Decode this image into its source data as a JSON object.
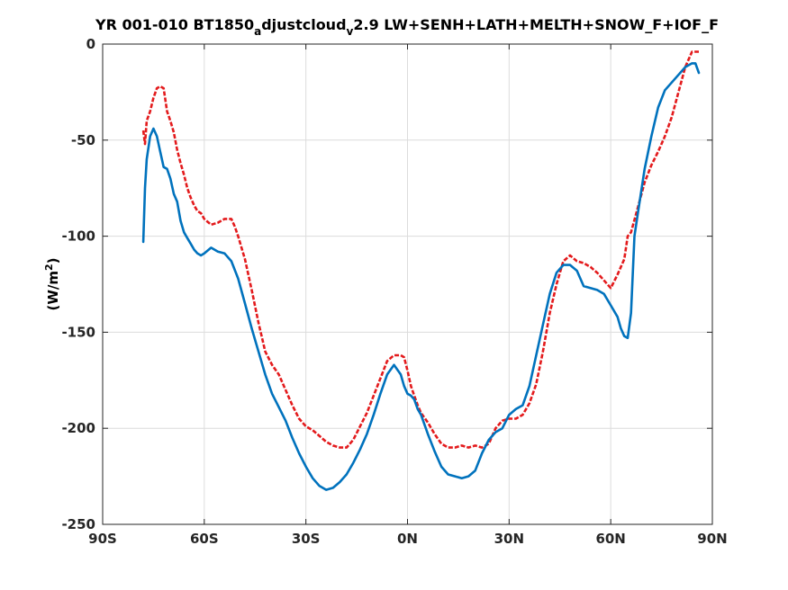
{
  "chart_data": {
    "type": "line",
    "title_parts": {
      "a": "YR 001-010 BT1850",
      "sub_a": "a",
      "b": "djustcloud",
      "sub_v": "v",
      "c": "2.9 LW+SENH+LATH+MELTH+SNOW_F+IOF_F"
    },
    "ylabel_parts": {
      "a": "(W/m",
      "sup": "2",
      "b": ")"
    },
    "xlim": [
      -90,
      90
    ],
    "ylim": [
      -250,
      0
    ],
    "grid": true,
    "x_ticks": [
      {
        "value": -90,
        "label": "90S"
      },
      {
        "value": -60,
        "label": "60S"
      },
      {
        "value": -30,
        "label": "30S"
      },
      {
        "value": 0,
        "label": "0N"
      },
      {
        "value": 30,
        "label": "30N"
      },
      {
        "value": 60,
        "label": "60N"
      },
      {
        "value": 90,
        "label": "90N"
      }
    ],
    "y_ticks": [
      {
        "value": 0,
        "label": "0"
      },
      {
        "value": -50,
        "label": "-50"
      },
      {
        "value": -100,
        "label": "-100"
      },
      {
        "value": -150,
        "label": "-150"
      },
      {
        "value": -200,
        "label": "-200"
      },
      {
        "value": -250,
        "label": "-250"
      }
    ],
    "series": [
      {
        "color": "#e31a1c",
        "style": "dashed",
        "x": [
          -78,
          -77.5,
          -77,
          -76,
          -75,
          -74,
          -73,
          -72,
          -71,
          -70,
          -69,
          -68,
          -67,
          -66,
          -65,
          -64,
          -63,
          -62,
          -61,
          -60,
          -58,
          -56,
          -54,
          -52,
          -51,
          -50,
          -48,
          -46,
          -44,
          -42,
          -40,
          -38,
          -36,
          -34,
          -32,
          -30,
          -28,
          -26,
          -24,
          -22,
          -20,
          -18,
          -16,
          -14,
          -12,
          -10,
          -8,
          -6,
          -4,
          -2,
          -1,
          0,
          1,
          2,
          3,
          4,
          6,
          8,
          10,
          12,
          14,
          16,
          18,
          20,
          22,
          24,
          26,
          28,
          30,
          32,
          34,
          36,
          38,
          40,
          42,
          44,
          46,
          48,
          50,
          52,
          54,
          56,
          58,
          60,
          62,
          64,
          65,
          66,
          68,
          70,
          72,
          74,
          76,
          78,
          80,
          82,
          84,
          86
        ],
        "y": [
          -45,
          -52,
          -40,
          -35,
          -28,
          -23,
          -22,
          -23,
          -35,
          -40,
          -46,
          -55,
          -62,
          -68,
          -75,
          -80,
          -84,
          -87,
          -88,
          -91,
          -94,
          -93,
          -91,
          -91,
          -95,
          -100,
          -112,
          -128,
          -145,
          -160,
          -167,
          -172,
          -180,
          -188,
          -195,
          -199,
          -201,
          -204,
          -207,
          -209,
          -210,
          -210,
          -206,
          -199,
          -192,
          -183,
          -174,
          -165,
          -162,
          -162,
          -163,
          -170,
          -178,
          -183,
          -188,
          -192,
          -197,
          -203,
          -208,
          -210,
          -210,
          -209,
          -210,
          -209,
          -210,
          -208,
          -200,
          -196,
          -195,
          -195,
          -193,
          -187,
          -177,
          -160,
          -140,
          -125,
          -113,
          -110,
          -113,
          -114,
          -116,
          -119,
          -123,
          -127,
          -120,
          -112,
          -100,
          -98,
          -85,
          -72,
          -63,
          -56,
          -48,
          -38,
          -25,
          -12,
          -4,
          -4
        ]
      },
      {
        "color": "#0072bd",
        "style": "solid",
        "x": [
          -78,
          -77.5,
          -77,
          -76,
          -75,
          -74,
          -73,
          -72,
          -71,
          -70,
          -69,
          -68,
          -67,
          -66,
          -65,
          -64,
          -63,
          -62,
          -61,
          -60,
          -58,
          -56,
          -54,
          -52,
          -50,
          -48,
          -46,
          -44,
          -42,
          -40,
          -38,
          -36,
          -34,
          -32,
          -30,
          -28,
          -26,
          -24,
          -22,
          -20,
          -18,
          -16,
          -14,
          -12,
          -10,
          -8,
          -6,
          -4,
          -2,
          -1,
          0,
          1,
          2,
          3,
          4,
          6,
          8,
          10,
          12,
          14,
          16,
          18,
          20,
          22,
          24,
          26,
          28,
          30,
          32,
          34,
          36,
          38,
          40,
          42,
          44,
          46,
          48,
          50,
          52,
          54,
          56,
          58,
          60,
          62,
          63,
          64,
          65,
          66,
          67,
          68,
          70,
          72,
          74,
          76,
          78,
          80,
          82,
          84,
          85,
          86
        ],
        "y": [
          -103,
          -75,
          -60,
          -48,
          -44,
          -48,
          -56,
          -64,
          -65,
          -70,
          -78,
          -82,
          -92,
          -98,
          -101,
          -104,
          -107,
          -109,
          -110,
          -109,
          -106,
          -108,
          -109,
          -113,
          -122,
          -135,
          -148,
          -160,
          -172,
          -182,
          -189,
          -196,
          -205,
          -213,
          -220,
          -226,
          -230,
          -232,
          -231,
          -228,
          -224,
          -218,
          -211,
          -203,
          -193,
          -182,
          -172,
          -167,
          -172,
          -178,
          -182,
          -183,
          -185,
          -190,
          -193,
          -203,
          -212,
          -220,
          -224,
          -225,
          -226,
          -225,
          -222,
          -213,
          -206,
          -202,
          -200,
          -193,
          -190,
          -188,
          -178,
          -162,
          -146,
          -130,
          -119,
          -115,
          -115,
          -118,
          -126,
          -127,
          -128,
          -130,
          -136,
          -142,
          -148,
          -152,
          -153,
          -140,
          -100,
          -88,
          -65,
          -48,
          -33,
          -24,
          -20,
          -16,
          -12,
          -10,
          -10,
          -15
        ]
      }
    ]
  }
}
